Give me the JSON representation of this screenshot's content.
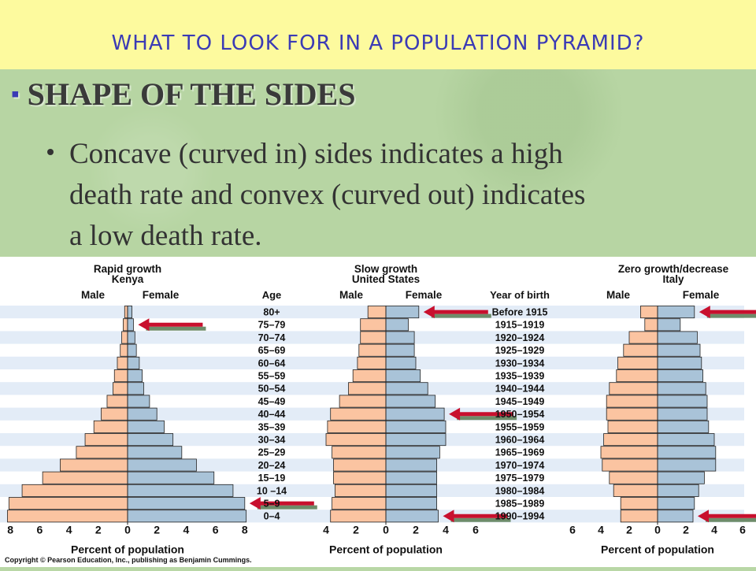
{
  "slide": {
    "title": "WHAT TO LOOK FOR IN A POPULATION PYRAMID?",
    "heading": "SHAPE OF THE SIDES",
    "body_lines": [
      "Concave (curved in) sides indicates a high",
      "death rate and convex (curved out) indicates",
      "a low death rate."
    ]
  },
  "figure": {
    "copyright": "Copyright © Pearson Education, Inc., publishing as Benjamin Cummings.",
    "age_header": "Age",
    "year_header": "Year of birth",
    "male_label": "Male",
    "female_label": "Female",
    "axis_label": "Percent of population",
    "colors": {
      "male": "#fbc4a1",
      "female": "#a9c3d8",
      "band": "#e3ecf7",
      "arrow": "#c8102e",
      "arrow_shadow": "#6e8c6a"
    },
    "age_groups": [
      "80+",
      "75–79",
      "70–74",
      "65–69",
      "60–64",
      "55–59",
      "50–54",
      "45–49",
      "40–44",
      "35–39",
      "30–34",
      "25–29",
      "20–24",
      "15–19",
      "10 –14",
      "5–9",
      "0–4"
    ],
    "birth_years": [
      "Before 1915",
      "1915–1919",
      "1920–1924",
      "1925–1929",
      "1930–1934",
      "1935–1939",
      "1940–1944",
      "1945–1949",
      "1950–1954",
      "1955–1959",
      "1960–1964",
      "1965–1969",
      "1970–1974",
      "1975–1979",
      "1980–1984",
      "1985–1989",
      "1990–1994"
    ]
  },
  "chart_data": [
    {
      "type": "bar",
      "title": "Rapid growth",
      "subtitle": "Kenya",
      "xlabel": "Percent of population",
      "xticks": [
        "8",
        "6",
        "4",
        "2",
        "0",
        "2",
        "4",
        "6",
        "8"
      ],
      "xlim": [
        -8,
        8
      ],
      "series": [
        {
          "name": "Male",
          "values": [
            0.2,
            0.3,
            0.4,
            0.5,
            0.7,
            0.9,
            1.0,
            1.4,
            1.8,
            2.3,
            2.9,
            3.5,
            4.6,
            5.8,
            7.2,
            8.1,
            8.2
          ]
        },
        {
          "name": "Female",
          "values": [
            0.3,
            0.4,
            0.5,
            0.6,
            0.8,
            1.0,
            1.1,
            1.5,
            2.0,
            2.5,
            3.1,
            3.7,
            4.7,
            5.9,
            7.2,
            8.0,
            8.1
          ]
        }
      ],
      "arrow_rows": [
        1,
        15
      ]
    },
    {
      "type": "bar",
      "title": "Slow growth",
      "subtitle": "United States",
      "xlabel": "Percent of population",
      "xticks": [
        "4",
        "2",
        "0",
        "2",
        "4",
        "6"
      ],
      "xlim": [
        -4,
        6
      ],
      "series": [
        {
          "name": "Male",
          "values": [
            1.2,
            1.7,
            1.7,
            1.8,
            1.9,
            2.2,
            2.5,
            3.1,
            3.7,
            3.9,
            4.0,
            3.6,
            3.5,
            3.5,
            3.4,
            3.6,
            3.7
          ]
        },
        {
          "name": "Female",
          "values": [
            2.2,
            1.5,
            1.9,
            1.9,
            2.0,
            2.3,
            2.8,
            3.3,
            3.9,
            4.0,
            4.0,
            3.6,
            3.4,
            3.4,
            3.4,
            3.4,
            3.5
          ]
        }
      ],
      "arrow_rows": [
        0,
        8,
        16
      ]
    },
    {
      "type": "bar",
      "title": "Zero growth/decrease",
      "subtitle": "Italy",
      "xlabel": "Percent of population",
      "xticks": [
        "6",
        "4",
        "2",
        "0",
        "2",
        "4",
        "6"
      ],
      "xlim": [
        -6,
        6
      ],
      "series": [
        {
          "name": "Male",
          "values": [
            1.2,
            0.9,
            2.0,
            2.4,
            2.8,
            2.9,
            3.4,
            3.6,
            3.6,
            3.5,
            3.8,
            4.0,
            3.9,
            3.4,
            3.1,
            2.6,
            2.6
          ]
        },
        {
          "name": "Female",
          "values": [
            2.6,
            1.6,
            2.8,
            3.0,
            3.1,
            3.2,
            3.4,
            3.5,
            3.5,
            3.6,
            4.0,
            4.1,
            4.1,
            3.3,
            2.9,
            2.6,
            2.5
          ]
        }
      ],
      "arrow_rows": [
        0,
        16
      ]
    }
  ]
}
